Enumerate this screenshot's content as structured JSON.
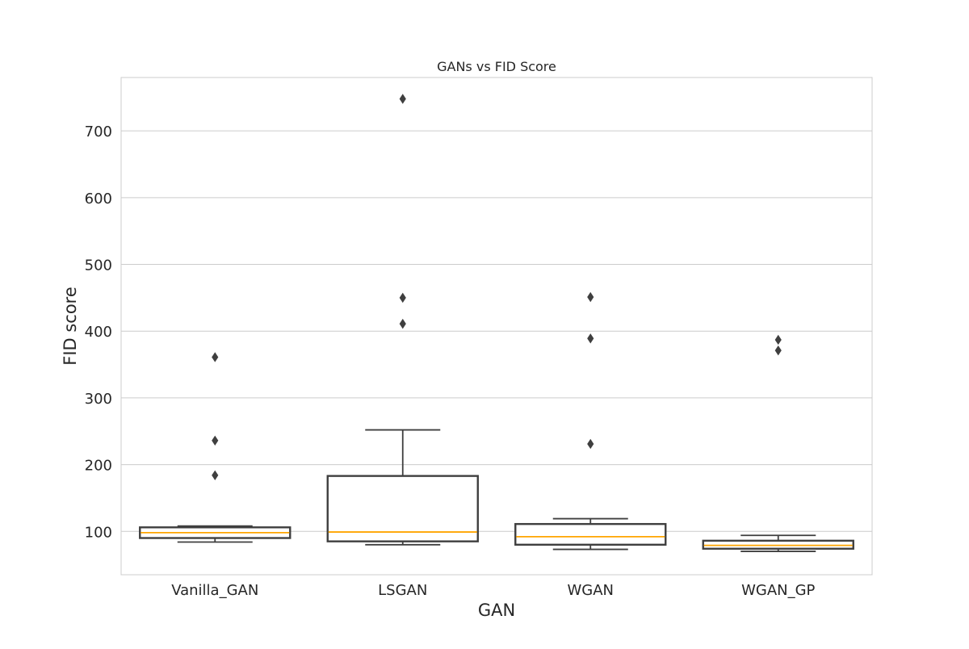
{
  "chart_data": {
    "type": "boxplot",
    "title": "GANs vs FID Score",
    "xlabel": "GAN",
    "ylabel": "FID score",
    "ylim": [
      35,
      780
    ],
    "yticks": [
      100,
      200,
      300,
      400,
      500,
      600,
      700
    ],
    "grid": true,
    "categories": [
      "Vanilla_GAN",
      "LSGAN",
      "WGAN",
      "WGAN_GP"
    ],
    "boxes": [
      {
        "name": "Vanilla_GAN",
        "whisker_low": 84,
        "q1": 90,
        "median": 98,
        "q3": 106,
        "whisker_high": 108,
        "outliers": [
          184,
          236,
          361
        ]
      },
      {
        "name": "LSGAN",
        "whisker_low": 80,
        "q1": 85,
        "median": 99,
        "q3": 183,
        "whisker_high": 252,
        "outliers": [
          411,
          450,
          748
        ]
      },
      {
        "name": "WGAN",
        "whisker_low": 73,
        "q1": 80,
        "median": 92,
        "q3": 111,
        "whisker_high": 119,
        "outliers": [
          231,
          389,
          451
        ]
      },
      {
        "name": "WGAN_GP",
        "whisker_low": 70,
        "q1": 74,
        "median": 79,
        "q3": 86,
        "whisker_high": 94,
        "outliers": [
          371,
          387
        ]
      }
    ],
    "colors": {
      "box_edge": "#3f3f3f",
      "median": "#ffa500",
      "grid": "#cccccc",
      "axes_edge": "#cccccc",
      "text": "#262626"
    }
  }
}
